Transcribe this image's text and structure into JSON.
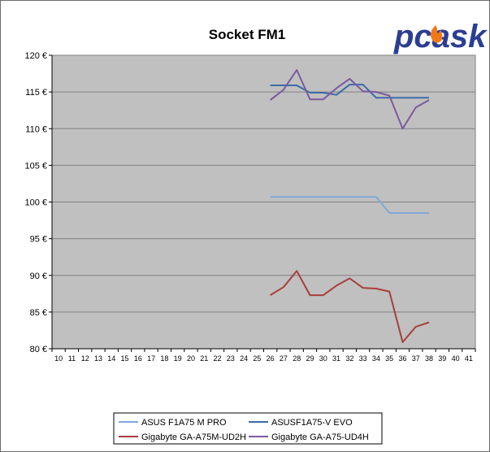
{
  "logo": {
    "text": "pcask",
    "color": "#2c3e92",
    "flame_color": "#f07818"
  },
  "chart_data": {
    "type": "line",
    "title": "Socket FM1",
    "xlabel": "",
    "ylabel": "",
    "x": [
      10,
      11,
      12,
      13,
      14,
      15,
      16,
      17,
      18,
      19,
      20,
      21,
      22,
      23,
      24,
      25,
      26,
      27,
      28,
      29,
      30,
      31,
      32,
      33,
      34,
      35,
      36,
      37,
      38,
      39,
      40,
      41
    ],
    "ylim": [
      80,
      120
    ],
    "y_ticks": [
      80,
      85,
      90,
      95,
      100,
      105,
      110,
      115,
      120
    ],
    "y_tick_labels": [
      "80 €",
      "85 €",
      "90 €",
      "95 €",
      "100 €",
      "105 €",
      "110 €",
      "115 €",
      "120 €"
    ],
    "grid": true,
    "plot_background": "#c0c0c0",
    "legend_position": "bottom",
    "series": [
      {
        "name": "ASUS F1A75 M PRO",
        "color": "#7fa7d6",
        "x": [
          26,
          27,
          28,
          29,
          30,
          31,
          32,
          33,
          34,
          35,
          36,
          37,
          38
        ],
        "values": [
          100.7,
          100.7,
          100.7,
          100.7,
          100.7,
          100.7,
          100.7,
          100.7,
          100.7,
          98.5,
          98.5,
          98.5,
          98.5
        ]
      },
      {
        "name": "ASUSF1A75-V EVO",
        "color": "#3e6aa8",
        "x": [
          26,
          27,
          28,
          29,
          30,
          31,
          32,
          33,
          34,
          35,
          36,
          37,
          38
        ],
        "values": [
          115.9,
          115.9,
          115.9,
          114.9,
          114.9,
          114.6,
          116.0,
          116.0,
          114.2,
          114.2,
          114.2,
          114.2,
          114.2
        ]
      },
      {
        "name": "Gigabyte GA-A75M-UD2H",
        "color": "#a83f3c",
        "x": [
          26,
          27,
          28,
          29,
          30,
          31,
          32,
          33,
          34,
          35,
          36,
          37,
          38
        ],
        "values": [
          87.3,
          88.4,
          90.6,
          87.3,
          87.3,
          88.6,
          89.6,
          88.3,
          88.2,
          87.8,
          80.9,
          83.0,
          83.6
        ]
      },
      {
        "name": "Gigabyte GA-A75-UD4H",
        "color": "#7a5a9e",
        "x": [
          26,
          27,
          28,
          29,
          30,
          31,
          32,
          33,
          34,
          35,
          36,
          37,
          38
        ],
        "values": [
          113.9,
          115.3,
          118.0,
          114.0,
          114.0,
          115.5,
          116.8,
          115.1,
          115.0,
          114.5,
          110.0,
          112.9,
          113.9
        ]
      }
    ]
  }
}
